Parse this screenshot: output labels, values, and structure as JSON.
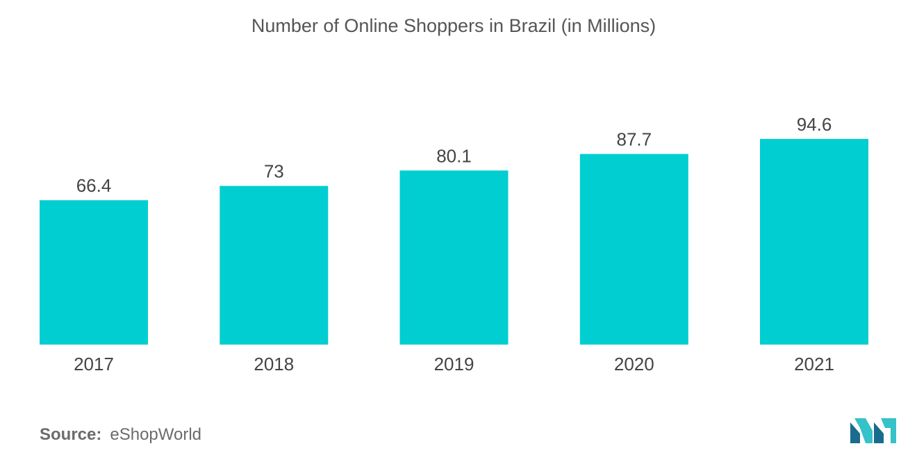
{
  "title": "Number of Online Shoppers in Brazil (in Millions)",
  "source": {
    "label": "Source:",
    "value": "eShopWorld"
  },
  "colors": {
    "bar": "#00ced1",
    "label": "#444444",
    "logo_dark": "#1b6b8f",
    "logo_light": "#35c2c8"
  },
  "chart_data": {
    "type": "bar",
    "categories": [
      "2017",
      "2018",
      "2019",
      "2020",
      "2021"
    ],
    "values": [
      66.4,
      73,
      80.1,
      87.7,
      94.6
    ],
    "value_labels": [
      "66.4",
      "73",
      "80.1",
      "87.7",
      "94.6"
    ],
    "title": "Number of Online Shoppers in Brazil (in Millions)",
    "xlabel": "",
    "ylabel": "",
    "ylim": [
      0,
      94.6
    ],
    "grid": false,
    "legend": "none"
  }
}
